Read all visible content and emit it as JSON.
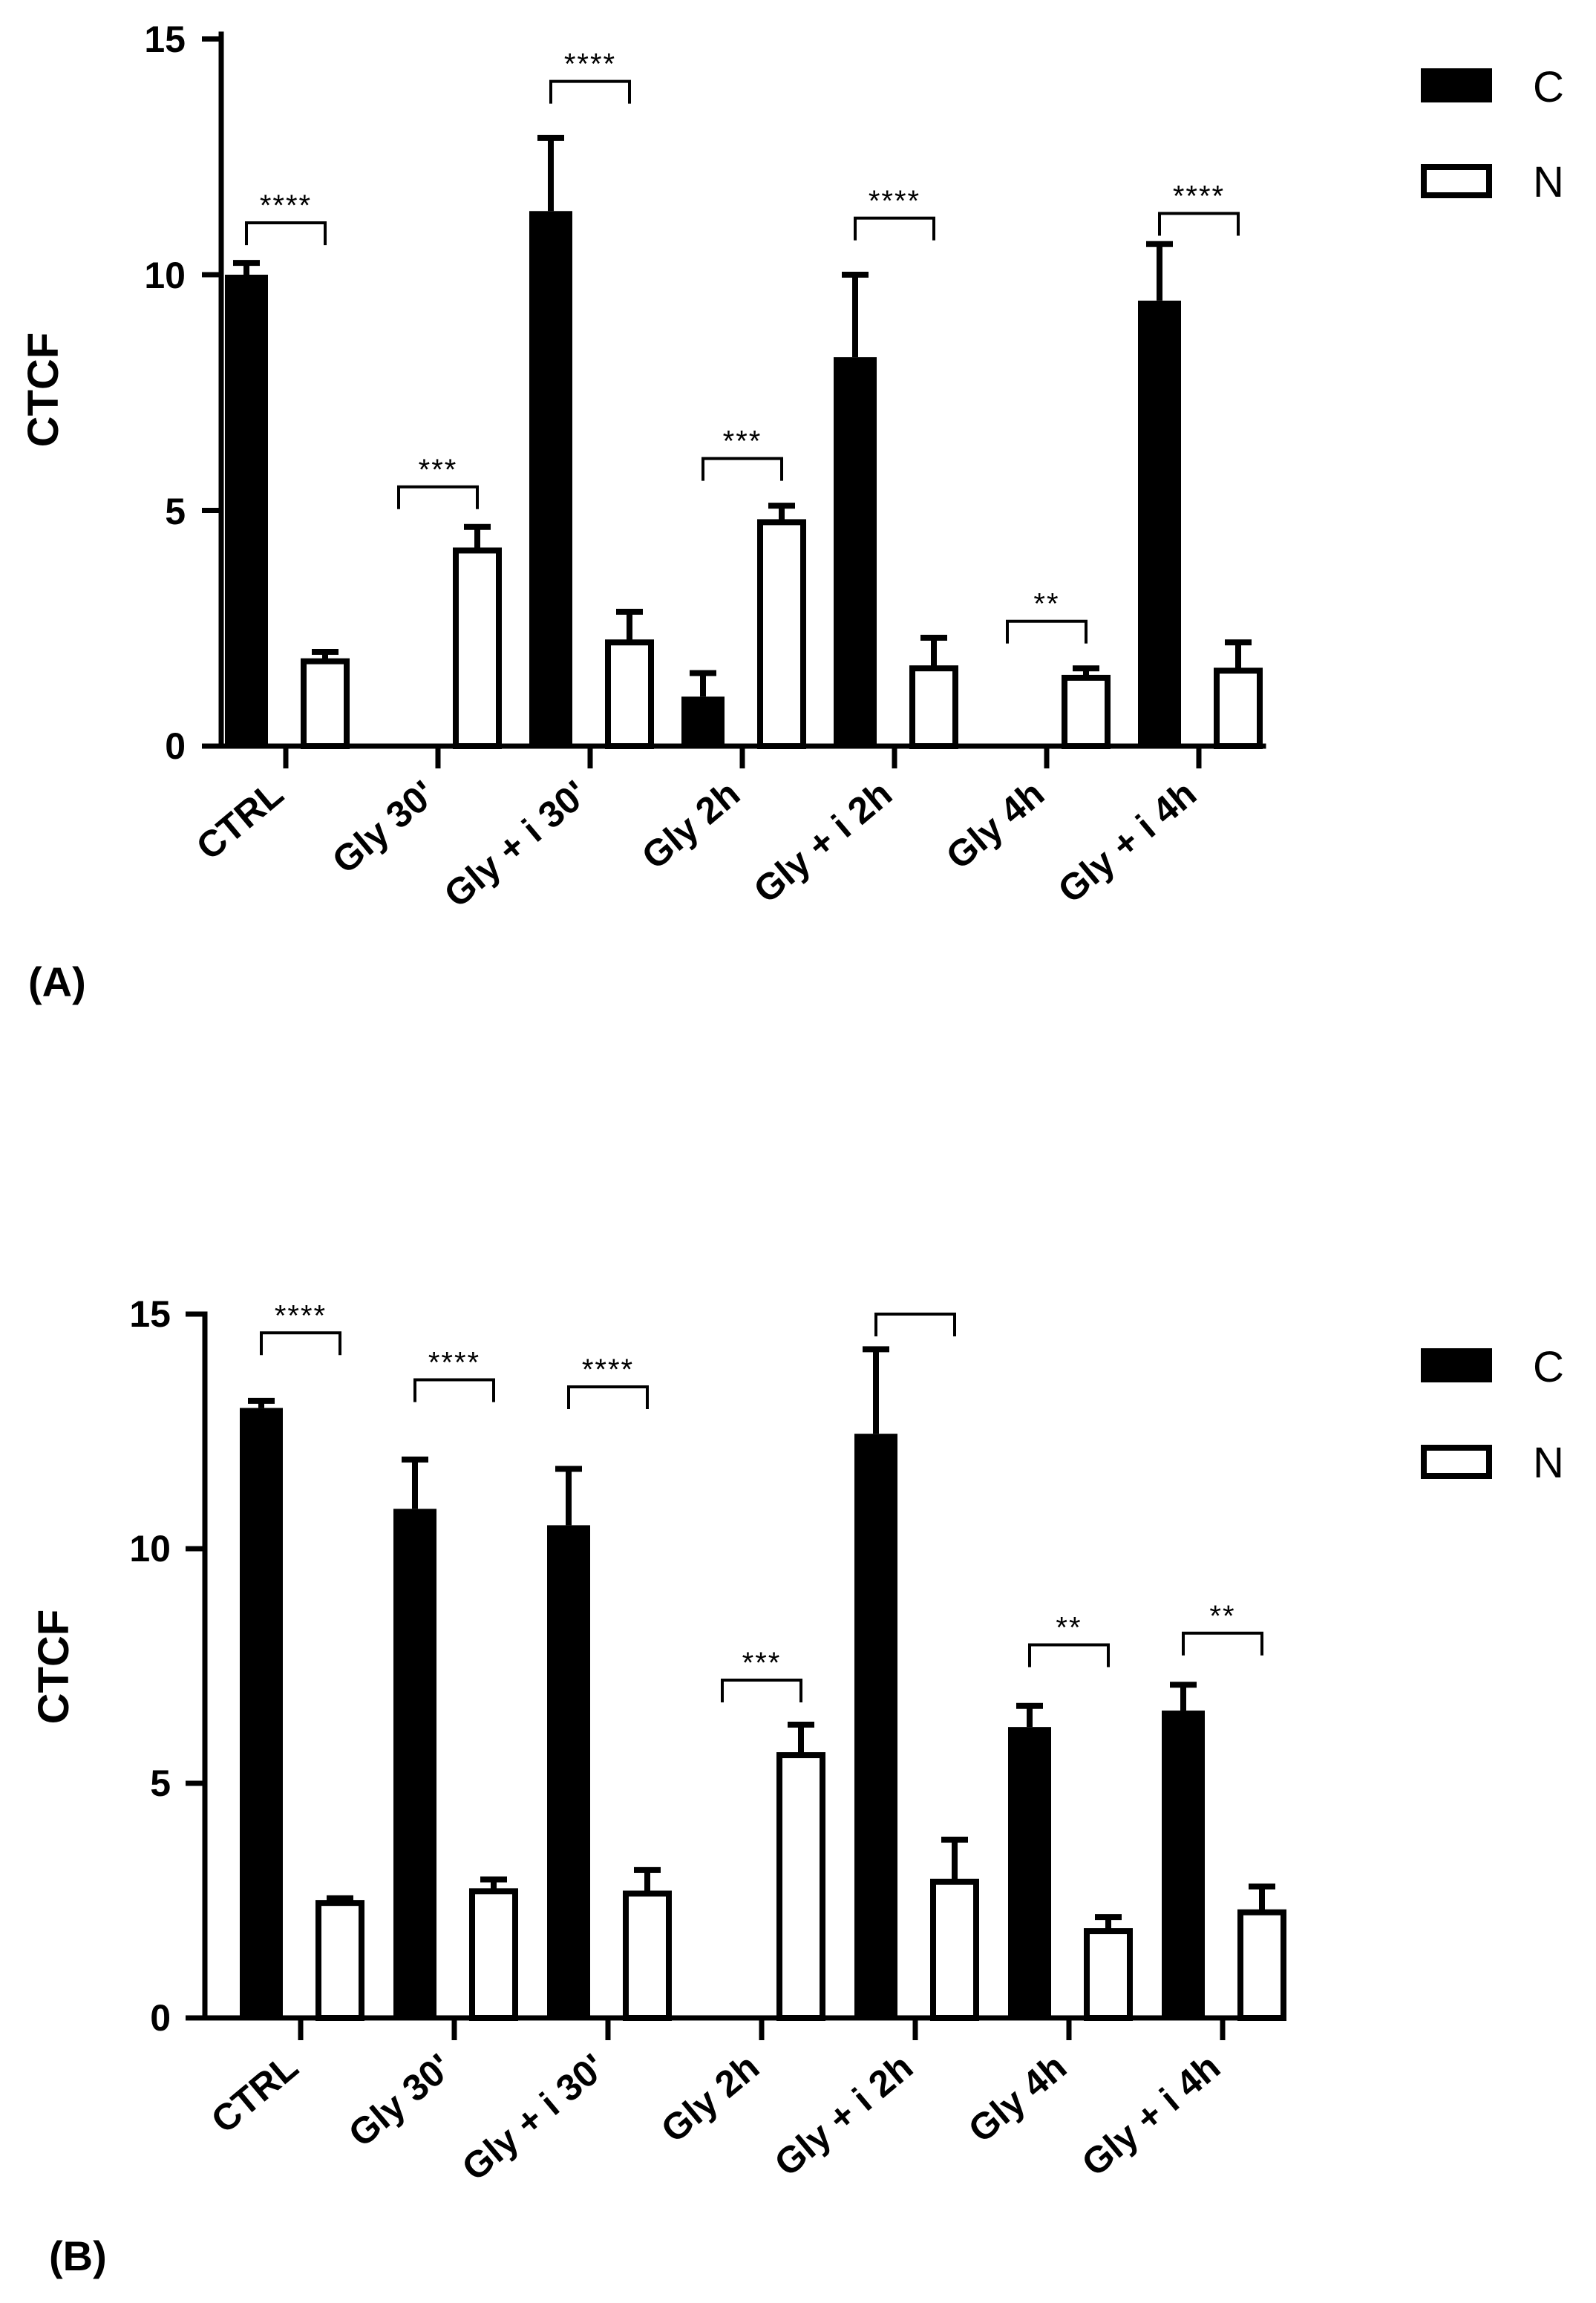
{
  "chart_data": [
    {
      "panel": "(A)",
      "type": "bar",
      "ylabel": "CTCF",
      "xlabel": "",
      "ylim": [
        0,
        15
      ],
      "yticks": [
        "0",
        "5",
        "10",
        "15"
      ],
      "legend": {
        "position": "top-right",
        "entries": [
          "C",
          "N"
        ]
      },
      "categories": [
        "CTRL",
        "Gly 30'",
        "Gly + i 30'",
        "Gly 2h",
        "Gly + i 2h",
        "Gly 4h",
        "Gly + i 4h"
      ],
      "series": [
        {
          "name": "C",
          "color": "#000000",
          "values": [
            10.0,
            0,
            11.35,
            1.05,
            8.25,
            0,
            9.45
          ],
          "errors": [
            0.25,
            0,
            1.55,
            0.5,
            1.75,
            0,
            1.2
          ]
        },
        {
          "name": "N",
          "color": "#ffffff",
          "values": [
            1.8,
            4.15,
            2.2,
            4.75,
            1.65,
            1.45,
            1.6
          ],
          "errors": [
            0.2,
            0.5,
            0.65,
            0.35,
            0.65,
            0.2,
            0.6
          ]
        }
      ],
      "significance": [
        "****",
        "***",
        "****",
        "***",
        "****",
        "**",
        "****"
      ],
      "bracket_y": [
        11.1,
        5.5,
        14.1,
        6.1,
        11.2,
        2.65,
        11.3
      ]
    },
    {
      "panel": "(B)",
      "type": "bar",
      "ylabel": "CTCF",
      "xlabel": "",
      "ylim": [
        0,
        15
      ],
      "yticks": [
        "0",
        "5",
        "10",
        "15"
      ],
      "legend": {
        "position": "top-right",
        "entries": [
          "C",
          "N"
        ]
      },
      "categories": [
        "CTRL",
        "Gly 30'",
        "Gly + i 30'",
        "Gly 2h",
        "Gly + i 2h",
        "Gly 4h",
        "Gly + i 4h"
      ],
      "series": [
        {
          "name": "C",
          "color": "#000000",
          "values": [
            13.0,
            10.85,
            10.5,
            0,
            12.45,
            6.2,
            6.55
          ],
          "errors": [
            0.15,
            1.05,
            1.2,
            0,
            1.8,
            0.45,
            0.55
          ]
        },
        {
          "name": "N",
          "color": "#ffffff",
          "values": [
            2.45,
            2.7,
            2.65,
            5.6,
            2.9,
            1.85,
            2.25
          ],
          "errors": [
            0.1,
            0.25,
            0.5,
            0.65,
            0.9,
            0.3,
            0.55
          ]
        }
      ],
      "significance": [
        "****",
        "****",
        "****",
        "***",
        "",
        "**",
        "**"
      ],
      "bracket_y": [
        14.6,
        13.6,
        13.45,
        7.2,
        15.0,
        7.95,
        8.2
      ]
    }
  ]
}
